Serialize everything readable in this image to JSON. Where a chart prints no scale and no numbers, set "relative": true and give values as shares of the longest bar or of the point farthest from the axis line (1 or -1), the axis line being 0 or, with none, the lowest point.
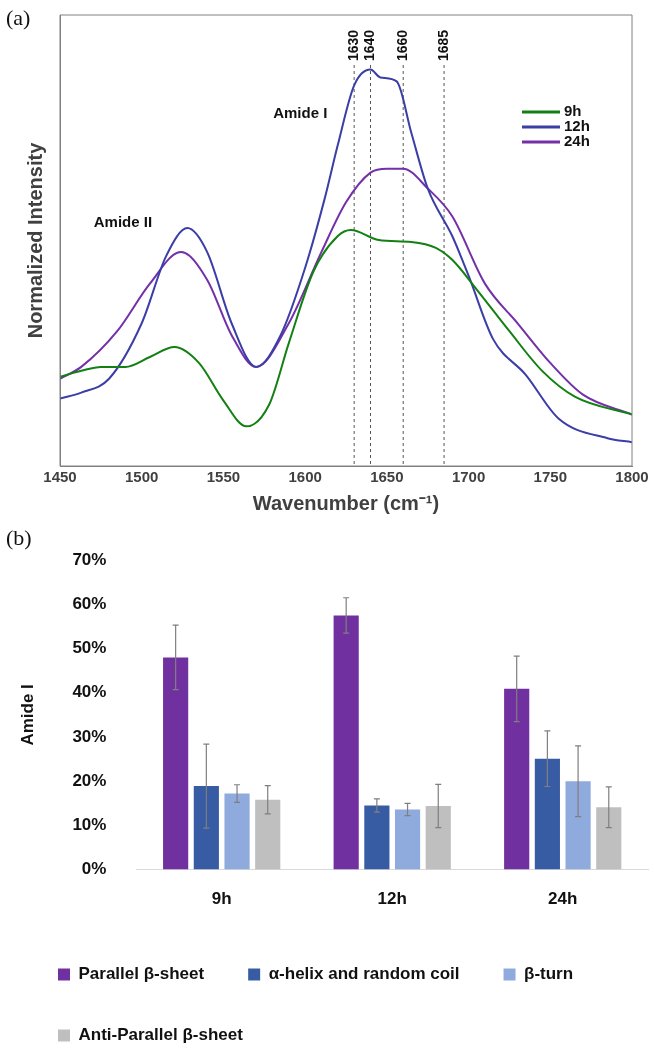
{
  "chart_data": [
    {
      "type": "line",
      "relative": true,
      "xlabel": "Wavenumber (cm⁻¹)",
      "ylabel": "Normalized Intensity",
      "xlim": [
        1450,
        1800
      ],
      "xticks": [
        1450,
        1500,
        1550,
        1600,
        1650,
        1700,
        1750,
        1800
      ],
      "grid": false,
      "legend": "top right",
      "marker": "none",
      "line_style": "solid",
      "series": [
        {
          "name": "9h",
          "color": "#138013",
          "x": [
            1450,
            1463,
            1475,
            1490,
            1505,
            1520,
            1535,
            1550,
            1564,
            1578,
            1590,
            1605,
            1620,
            1628,
            1645,
            1665,
            1680,
            1690,
            1705,
            1725,
            1745,
            1765,
            1800
          ],
          "values": [
            0.225,
            0.24,
            0.25,
            0.25,
            0.275,
            0.3,
            0.26,
            0.165,
            0.1,
            0.155,
            0.31,
            0.49,
            0.58,
            0.595,
            0.57,
            0.565,
            0.55,
            0.52,
            0.445,
            0.34,
            0.24,
            0.175,
            0.13
          ]
        },
        {
          "name": "12h",
          "color": "#3a3ea6",
          "x": [
            1450,
            1463,
            1480,
            1500,
            1515,
            1528,
            1540,
            1555,
            1570,
            1585,
            1600,
            1612,
            1620,
            1630,
            1640,
            1646,
            1656,
            1665,
            1675,
            1690,
            1700,
            1715,
            1735,
            1755,
            1785,
            1800
          ],
          "values": [
            0.17,
            0.185,
            0.22,
            0.36,
            0.53,
            0.6,
            0.54,
            0.36,
            0.25,
            0.33,
            0.5,
            0.675,
            0.81,
            0.96,
            1.0,
            0.98,
            0.97,
            0.84,
            0.7,
            0.58,
            0.48,
            0.32,
            0.23,
            0.12,
            0.07,
            0.06
          ]
        },
        {
          "name": "24h",
          "color": "#7330a8",
          "x": [
            1450,
            1463,
            1485,
            1505,
            1524,
            1540,
            1555,
            1570,
            1590,
            1610,
            1625,
            1640,
            1650,
            1660,
            1675,
            1690,
            1710,
            1730,
            1750,
            1770,
            1800
          ],
          "values": [
            0.22,
            0.25,
            0.34,
            0.46,
            0.54,
            0.47,
            0.33,
            0.25,
            0.36,
            0.54,
            0.665,
            0.74,
            0.75,
            0.75,
            0.7,
            0.63,
            0.46,
            0.36,
            0.26,
            0.18,
            0.13
          ]
        }
      ],
      "ref_lines": [
        {
          "axis": "x",
          "value": 1630,
          "label": "1630",
          "color": "#555555",
          "line_style": "dashed"
        },
        {
          "axis": "x",
          "value": 1640,
          "label": "1640",
          "color": "#555555",
          "line_style": "dashed"
        },
        {
          "axis": "x",
          "value": 1660,
          "label": "1660",
          "color": "#555555",
          "line_style": "dashed"
        },
        {
          "axis": "x",
          "value": 1685,
          "label": "1685",
          "color": "#555555",
          "line_style": "dashed"
        }
      ],
      "annotations": [
        "(a)",
        "Amide I",
        "Amide II"
      ]
    },
    {
      "type": "bar",
      "ylabel": "Amide I",
      "categories": [
        "9h",
        "12h",
        "24h"
      ],
      "ylim": [
        0,
        70
      ],
      "yticks": [
        {
          "value": 0,
          "label": "0%"
        },
        {
          "value": 10,
          "label": "10%"
        },
        {
          "value": 20,
          "label": "20%"
        },
        {
          "value": 30,
          "label": "30%"
        },
        {
          "value": 40,
          "label": "40%"
        },
        {
          "value": 50,
          "label": "50%"
        },
        {
          "value": 60,
          "label": "60%"
        },
        {
          "value": 70,
          "label": "70%"
        }
      ],
      "grid": false,
      "legend": "bottom",
      "series": [
        {
          "name": "Parallel β-sheet",
          "color": "#7030a0",
          "values": [
            48.0,
            57.5,
            40.9
          ],
          "errors": [
            7.3,
            4.0,
            7.4
          ]
        },
        {
          "name": "α-helix and random coil",
          "color": "#385ca4",
          "values": [
            18.9,
            14.5,
            25.1
          ],
          "errors": [
            9.5,
            1.5,
            6.3
          ]
        },
        {
          "name": "β-turn",
          "color": "#8faadc",
          "values": [
            17.2,
            13.6,
            20.0
          ],
          "errors": [
            2.0,
            1.4,
            8.0
          ]
        },
        {
          "name": "Anti-Parallel β-sheet",
          "color": "#bfbfbf",
          "values": [
            15.8,
            14.4,
            14.1
          ],
          "errors": [
            3.2,
            4.9,
            4.6
          ]
        }
      ],
      "annotations": [
        "(b)"
      ]
    }
  ]
}
